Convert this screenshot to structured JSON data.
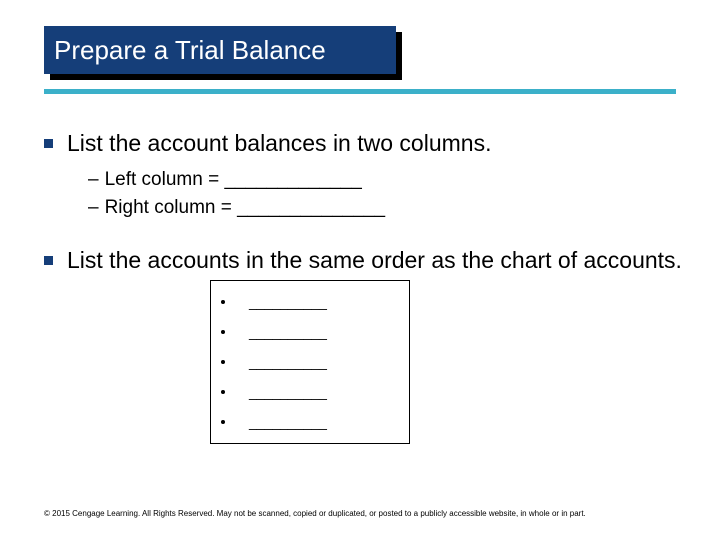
{
  "title": "Prepare a Trial Balance",
  "colors": {
    "title_bg": "#153e79",
    "title_text": "#ffffff",
    "shadow": "#000000",
    "rule": "#3bb0c9",
    "bullet": "#153e79",
    "body_text": "#000000",
    "background": "#ffffff"
  },
  "bullets": [
    {
      "text": "List the account balances in two columns.",
      "subs": [
        "Left column = _____________",
        "Right column = ______________"
      ]
    },
    {
      "text": "List the accounts in the same order as the chart of accounts.",
      "subs": []
    }
  ],
  "box_items": [
    "__________",
    "__________",
    "__________",
    "__________",
    "__________"
  ],
  "footer": "© 2015 Cengage Learning. All Rights Reserved. May not be scanned, copied or duplicated, or posted to a publicly accessible website, in whole or in part."
}
